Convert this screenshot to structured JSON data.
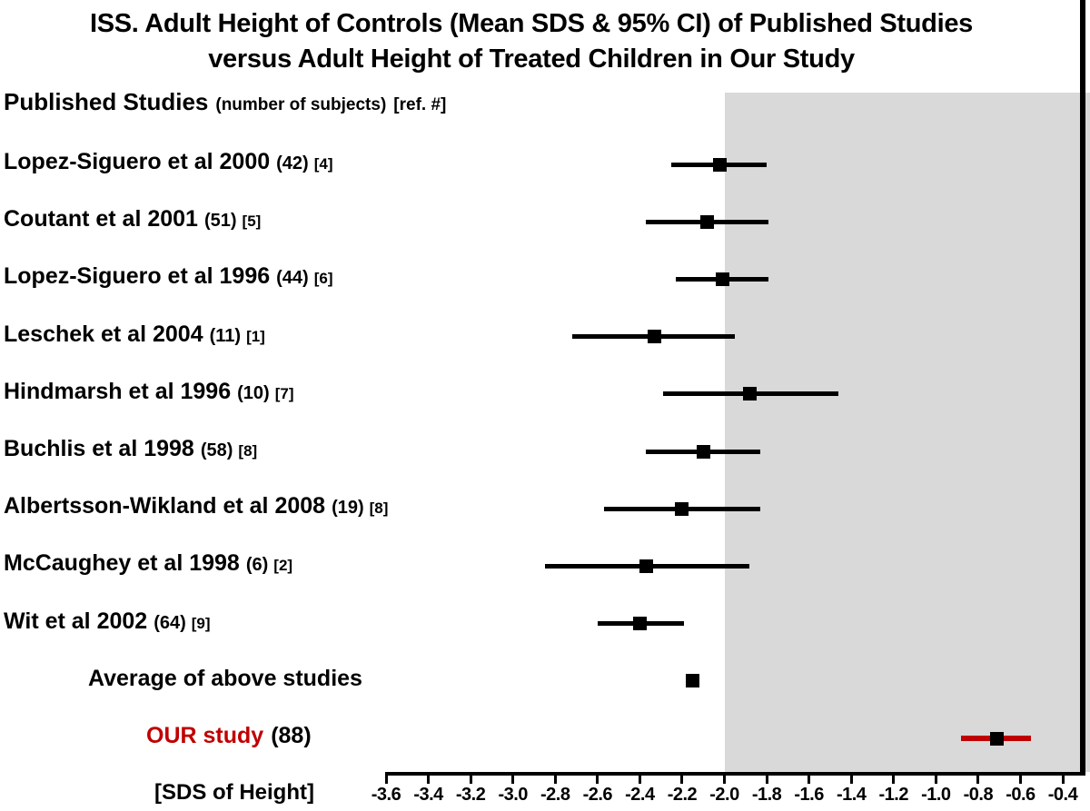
{
  "title": {
    "line1": "ISS. Adult Height of Controls (Mean SDS & 95% CI) of Published Studies",
    "line2": "versus Adult Height of Treated Children in Our Study"
  },
  "column_header": {
    "main": "Published Studies",
    "subjects_note": "(number of subjects)",
    "ref_note": "[ref. #]"
  },
  "x_axis": {
    "caption": "[SDS of Height]",
    "tick_labels": [
      "-3.6",
      "-3.4",
      "-3.2",
      "-3.0",
      "-2.8",
      "-2.6",
      "-2.4",
      "-2.2",
      "-2.0",
      "-1.8",
      "-1.6",
      "-1.4",
      "-1.2",
      "-1.0",
      "-0.8",
      "-0.6",
      "-0.4"
    ]
  },
  "colors": {
    "shaded_region": "#d9d9d9",
    "data_black": "#000000",
    "our_study_red": "#c00000"
  },
  "chart_data": {
    "type": "scatter",
    "subtype": "forest-plot-mean-95ci",
    "title": "ISS. Adult Height of Controls (Mean SDS & 95% CI) of Published Studies versus Adult Height of Treated Children in Our Study",
    "xlabel": "[SDS of Height]",
    "x_ticks": [
      -3.6,
      -3.4,
      -3.2,
      -3.0,
      -2.8,
      -2.6,
      -2.4,
      -2.2,
      -2.0,
      -1.8,
      -1.6,
      -1.4,
      -1.2,
      -1.0,
      -0.8,
      -0.6,
      -0.4
    ],
    "xlim": [
      -3.62,
      -0.3
    ],
    "grid": false,
    "shaded_region": {
      "from_x": -2.0,
      "to_x": -0.3,
      "color": "#d9d9d9"
    },
    "rows": [
      {
        "label": "Lopez-Siguero et al 2000",
        "subjects": "(42)",
        "ref": "[4]",
        "mean": -2.02,
        "ci_low": -2.25,
        "ci_high": -1.8,
        "color": "black",
        "style": "study"
      },
      {
        "label": "Coutant et al 2001",
        "subjects": "(51)",
        "ref": "[5]",
        "mean": -2.08,
        "ci_low": -2.37,
        "ci_high": -1.79,
        "color": "black",
        "style": "study"
      },
      {
        "label": "Lopez-Siguero et al 1996",
        "subjects": "(44)",
        "ref": "[6]",
        "mean": -2.01,
        "ci_low": -2.23,
        "ci_high": -1.79,
        "color": "black",
        "style": "study"
      },
      {
        "label": "Leschek et al 2004",
        "subjects": "(11)",
        "ref": "[1]",
        "mean": -2.33,
        "ci_low": -2.72,
        "ci_high": -1.95,
        "color": "black",
        "style": "study"
      },
      {
        "label": "Hindmarsh et al 1996",
        "subjects": "(10)",
        "ref": "[7]",
        "mean": -1.88,
        "ci_low": -2.29,
        "ci_high": -1.46,
        "color": "black",
        "style": "study"
      },
      {
        "label": "Buchlis et al 1998",
        "subjects": "(58)",
        "ref": "[8]",
        "mean": -2.1,
        "ci_low": -2.37,
        "ci_high": -1.83,
        "color": "black",
        "style": "study"
      },
      {
        "label": "Albertsson-Wikland et al 2008",
        "subjects": "(19)",
        "ref": "[8]",
        "mean": -2.2,
        "ci_low": -2.57,
        "ci_high": -1.83,
        "color": "black",
        "style": "study"
      },
      {
        "label": "McCaughey et al 1998",
        "subjects": "(6)",
        "ref": "[2]",
        "mean": -2.37,
        "ci_low": -2.85,
        "ci_high": -1.88,
        "color": "black",
        "style": "study"
      },
      {
        "label": "Wit et al 2002",
        "subjects": "(64)",
        "ref": "[9]",
        "mean": -2.4,
        "ci_low": -2.6,
        "ci_high": -2.19,
        "color": "black",
        "style": "study"
      },
      {
        "label": "Average of above studies",
        "subjects": "",
        "ref": "",
        "mean": -2.15,
        "ci_low": null,
        "ci_high": null,
        "color": "black",
        "style": "average"
      },
      {
        "label": "OUR study",
        "subjects": "(88)",
        "ref": "",
        "mean": -0.71,
        "ci_low": -0.88,
        "ci_high": -0.55,
        "color": "red",
        "style": "our"
      }
    ]
  }
}
